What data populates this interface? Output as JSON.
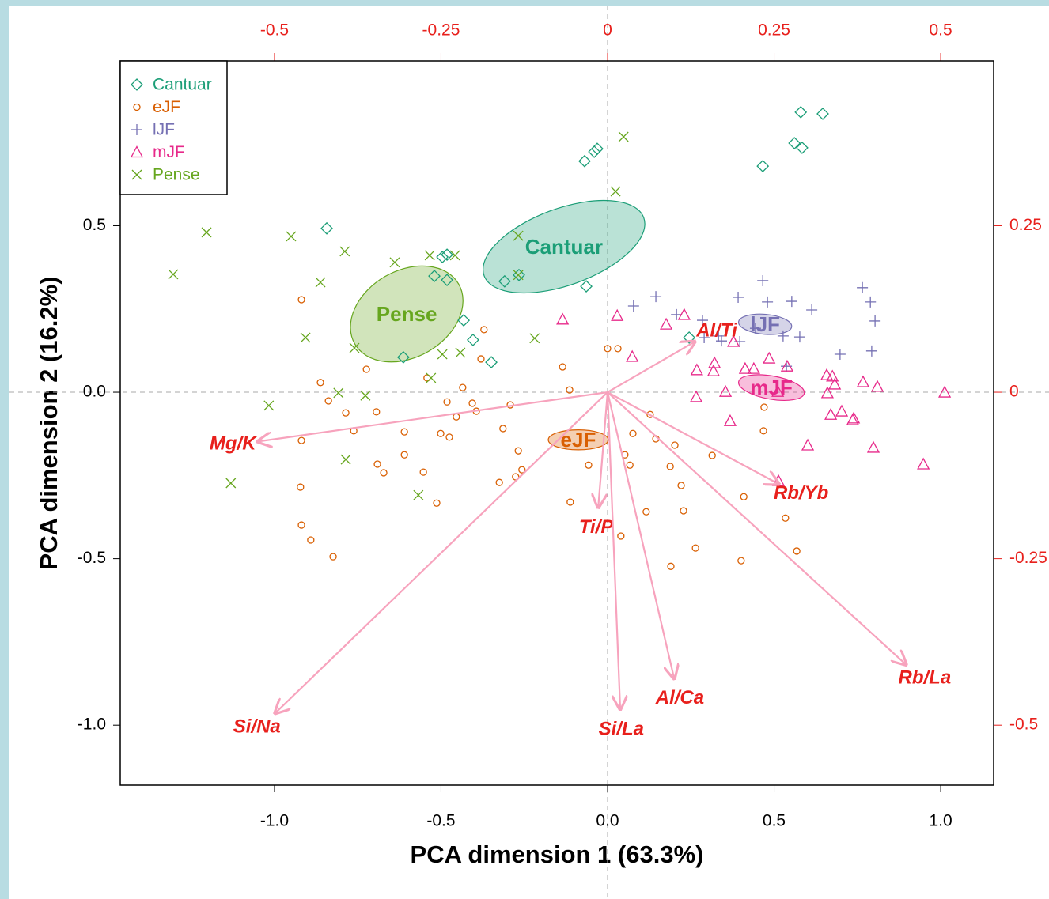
{
  "chart_data": {
    "type": "scatter",
    "xlabel": "PCA dimension 1 (63.3%)",
    "ylabel": "PCA dimension 2 (16.2%)",
    "xlim": [
      -1.463,
      1.159
    ],
    "ylim": [
      -1.18,
      0.995
    ],
    "xticks": [
      {
        "value": -1.0,
        "label": "-1.0"
      },
      -0.5,
      {
        "value": 0.0,
        "label": "0.0"
      },
      0.5,
      {
        "value": 1.0,
        "label": "1.0"
      }
    ],
    "yticks": [
      {
        "value": -1.0,
        "label": "-1.0"
      },
      -0.5,
      {
        "value": 0.0,
        "label": "0.0"
      },
      0.5
    ],
    "x2lim": [
      -0.7315,
      0.5795
    ],
    "y2lim": [
      -0.59,
      0.4975
    ],
    "x2ticks": [
      -0.5,
      -0.25,
      0,
      0.25,
      0.5
    ],
    "y2ticks": [
      -0.5,
      -0.25,
      0,
      0.25
    ],
    "series": [
      {
        "name": "Cantuar",
        "color": "#1b9e77",
        "marker": "diamond",
        "ellipse": {
          "cx": -0.131,
          "cy": 0.437,
          "rx": 0.255,
          "ry": 0.115,
          "angle": 20
        },
        "x": [
          -0.843,
          -0.496,
          -0.482,
          -0.52,
          -0.482,
          -0.432,
          -0.404,
          -0.349,
          -0.309,
          -0.266,
          -0.064,
          -0.069,
          -0.04,
          -0.031,
          0.466,
          0.561,
          0.584,
          0.58,
          0.646,
          0.245,
          -0.613
        ],
        "values": [
          0.492,
          0.406,
          0.413,
          0.349,
          0.337,
          0.216,
          0.157,
          0.09,
          0.333,
          0.352,
          0.318,
          0.694,
          0.722,
          0.731,
          0.679,
          0.748,
          0.734,
          0.841,
          0.836,
          0.164,
          0.105
        ]
      },
      {
        "name": "eJF",
        "color": "#d95f02",
        "marker": "circle",
        "ellipse": {
          "cx": -0.088,
          "cy": -0.143,
          "rx": 0.09,
          "ry": 0.03,
          "angle": 0
        },
        "x": [
          -0.919,
          -0.862,
          -0.838,
          -0.919,
          -0.922,
          -0.919,
          -0.891,
          -0.824,
          -0.786,
          -0.724,
          -0.694,
          -0.762,
          -0.691,
          -0.672,
          -0.61,
          -0.61,
          -0.553,
          -0.513,
          -0.542,
          -0.482,
          -0.435,
          -0.406,
          -0.454,
          -0.501,
          -0.475,
          -0.394,
          -0.371,
          -0.38,
          -0.292,
          -0.314,
          -0.268,
          -0.276,
          -0.325,
          -0.257,
          -0.135,
          -0.114,
          0.0,
          0.031,
          0.076,
          0.052,
          0.067,
          0.128,
          0.145,
          0.202,
          0.188,
          0.221,
          0.228,
          0.264,
          0.401,
          0.409,
          0.47,
          0.468,
          0.534,
          0.568,
          0.314,
          0.04,
          0.116,
          0.19,
          -0.112,
          -0.057
        ],
        "values": [
          0.278,
          0.029,
          -0.026,
          -0.145,
          -0.285,
          -0.399,
          -0.444,
          -0.494,
          -0.062,
          0.069,
          -0.059,
          -0.116,
          -0.216,
          -0.242,
          -0.119,
          -0.188,
          -0.24,
          -0.333,
          0.043,
          -0.029,
          0.014,
          -0.033,
          -0.074,
          -0.124,
          -0.135,
          -0.057,
          0.188,
          0.1,
          -0.038,
          -0.109,
          -0.176,
          -0.254,
          -0.271,
          -0.233,
          0.076,
          0.007,
          0.131,
          0.131,
          -0.124,
          -0.188,
          -0.219,
          -0.067,
          -0.14,
          -0.159,
          -0.223,
          -0.28,
          -0.356,
          -0.468,
          -0.506,
          -0.314,
          -0.045,
          -0.116,
          -0.378,
          -0.477,
          -0.19,
          -0.432,
          -0.359,
          -0.523,
          -0.33,
          -0.219
        ]
      },
      {
        "name": "lJF",
        "color": "#7570b3",
        "marker": "plus",
        "ellipse": {
          "cx": 0.473,
          "cy": 0.204,
          "rx": 0.08,
          "ry": 0.03,
          "angle": -5
        },
        "x": [
          0.078,
          0.145,
          0.207,
          0.285,
          0.333,
          0.392,
          0.466,
          0.48,
          0.553,
          0.613,
          0.765,
          0.789,
          0.803,
          0.793,
          0.698,
          0.537,
          0.527,
          0.577,
          0.397,
          0.29,
          0.342,
          0.444
        ],
        "values": [
          0.259,
          0.287,
          0.233,
          0.216,
          0.169,
          0.285,
          0.335,
          0.271,
          0.273,
          0.247,
          0.314,
          0.271,
          0.214,
          0.124,
          0.114,
          0.078,
          0.169,
          0.166,
          0.152,
          0.164,
          0.154,
          0.192
        ]
      },
      {
        "name": "mJF",
        "color": "#e7298a",
        "marker": "triangle",
        "ellipse": {
          "cx": 0.492,
          "cy": 0.014,
          "rx": 0.1,
          "ry": 0.035,
          "angle": -10
        },
        "x": [
          -0.135,
          0.029,
          0.074,
          0.176,
          0.23,
          0.268,
          0.321,
          0.318,
          0.378,
          0.439,
          0.413,
          0.485,
          0.539,
          0.601,
          0.513,
          0.658,
          0.675,
          0.682,
          0.767,
          0.81,
          0.798,
          0.948,
          1.012,
          0.67,
          0.736,
          0.511,
          0.368,
          0.266,
          0.354,
          0.739,
          0.703,
          0.66
        ],
        "values": [
          0.219,
          0.23,
          0.107,
          0.204,
          0.233,
          0.067,
          0.088,
          0.064,
          0.152,
          0.071,
          0.071,
          0.102,
          0.078,
          -0.159,
          -0.266,
          0.052,
          0.048,
          0.024,
          0.031,
          0.017,
          -0.166,
          -0.216,
          0.0,
          -0.067,
          -0.083,
          0.002,
          -0.086,
          -0.014,
          0.002,
          -0.078,
          -0.057,
          -0.002
        ]
      },
      {
        "name": "Pense",
        "color": "#66a61e",
        "marker": "cross",
        "ellipse": {
          "cx": -0.603,
          "cy": 0.235,
          "rx": 0.18,
          "ry": 0.13,
          "angle": 30
        },
        "x": [
          -1.304,
          -1.204,
          -0.95,
          -0.789,
          -0.862,
          -0.907,
          -0.639,
          -0.534,
          -0.458,
          -0.268,
          -0.268,
          0.048,
          0.024,
          -0.496,
          -0.442,
          -0.76,
          -0.727,
          -0.808,
          -1.017,
          -1.131,
          -0.786,
          -0.568,
          -0.219,
          -0.53
        ],
        "values": [
          0.354,
          0.48,
          0.468,
          0.423,
          0.33,
          0.164,
          0.39,
          0.411,
          0.411,
          0.47,
          0.352,
          0.767,
          0.603,
          0.114,
          0.119,
          0.133,
          -0.01,
          -0.002,
          -0.04,
          -0.273,
          -0.202,
          -0.309,
          0.162,
          0.043
        ]
      }
    ],
    "loadings": [
      {
        "label": "Al/Ti",
        "x": 0.131,
        "y": 0.076
      },
      {
        "label": "Mg/K",
        "x": -0.525,
        "y": -0.074
      },
      {
        "label": "Si/Na",
        "x": -0.499,
        "y": -0.482
      },
      {
        "label": "Ti/P",
        "x": -0.014,
        "y": -0.173
      },
      {
        "label": "Si/La",
        "x": 0.019,
        "y": -0.476
      },
      {
        "label": "Al/Ca",
        "x": 0.1,
        "y": -0.43
      },
      {
        "label": "Rb/Yb",
        "x": 0.257,
        "y": -0.138
      },
      {
        "label": "Rb/La",
        "x": 0.448,
        "y": -0.409
      }
    ],
    "loading_color": "#f7a3bd",
    "loading_label_color": "#e8201c",
    "secondary_color": "#e8201c",
    "legend": "top-left"
  }
}
